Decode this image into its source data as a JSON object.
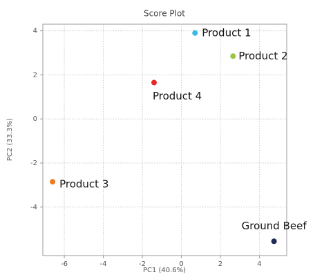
{
  "chart_data": {
    "type": "scatter",
    "title": "Score Plot",
    "x_label": "PC1 (40.6%)",
    "y_label": "PC2 (33.3%)",
    "xlim": [
      -7.1,
      5.4
    ],
    "ylim": [
      -6.2,
      4.3
    ],
    "xticks": [
      -6,
      -4,
      -2,
      0,
      2,
      4
    ],
    "yticks": [
      -4,
      -2,
      0,
      2,
      4
    ],
    "grid": true,
    "series": [
      {
        "name": "Product 1",
        "color": "#3bb8e8",
        "x": [
          0.7
        ],
        "values": [
          3.9
        ]
      },
      {
        "name": "Product 2",
        "color": "#9bc53d",
        "x": [
          2.65
        ],
        "values": [
          2.85
        ]
      },
      {
        "name": "Product 4",
        "color": "#e8262a",
        "x": [
          -1.4
        ],
        "values": [
          1.65
        ]
      },
      {
        "name": "Product 3",
        "color": "#ee7a22",
        "x": [
          -6.6
        ],
        "values": [
          -2.85
        ]
      },
      {
        "name": "Ground Beef",
        "color": "#1f2a5a",
        "x": [
          4.75
        ],
        "values": [
          -5.55
        ]
      }
    ]
  }
}
